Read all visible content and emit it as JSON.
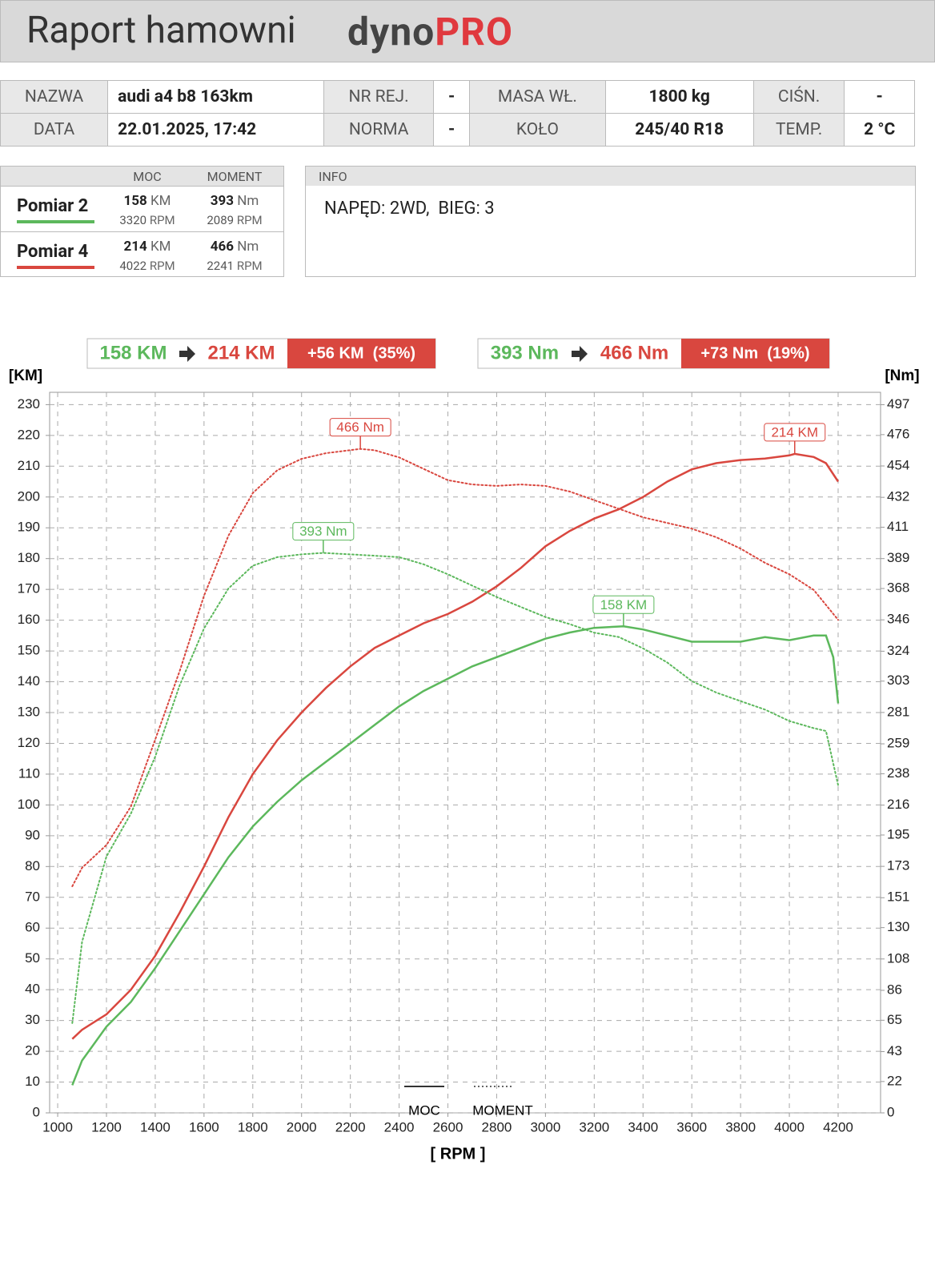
{
  "header": {
    "title": "Raport hamowni",
    "logo": [
      "dyno",
      "PRO"
    ]
  },
  "details": {
    "rows": [
      [
        {
          "label": "NAZWA",
          "value": "audi a4 b8 163km"
        },
        {
          "label": "NR REJ.",
          "value": "-"
        },
        {
          "label": "MASA WŁ.",
          "value": "1800 kg"
        },
        {
          "label": "CIŚN.",
          "value": "-"
        }
      ],
      [
        {
          "label": "DATA",
          "value": "22.01.2025, 17:42"
        },
        {
          "label": "NORMA",
          "value": "-"
        },
        {
          "label": "KOŁO",
          "value": "245/40 R18"
        },
        {
          "label": "TEMP.",
          "value": "2 °C"
        }
      ]
    ]
  },
  "measurements": {
    "headers": [
      "MOC",
      "MOMENT"
    ],
    "rows": [
      {
        "name": "Pomiar 2",
        "color": "#5cb85c",
        "power": [
          "158",
          "KM"
        ],
        "power_rpm": [
          "3320",
          "RPM"
        ],
        "torque": [
          "393",
          "Nm"
        ],
        "torque_rpm": [
          "2089",
          "RPM"
        ]
      },
      {
        "name": "Pomiar 4",
        "color": "#d9473f",
        "power": [
          "214",
          "KM"
        ],
        "power_rpm": [
          "4022",
          "RPM"
        ],
        "torque": [
          "466",
          "Nm"
        ],
        "torque_rpm": [
          "2241",
          "RPM"
        ]
      }
    ]
  },
  "info": {
    "title": "INFO",
    "text": "NAPĘD: 2WD,  BIEG: 3"
  },
  "comparison": [
    {
      "from": "158 KM",
      "to": "214 KM",
      "diff": "+56 KM  (35%)"
    },
    {
      "from": "393 Nm",
      "to": "466 Nm",
      "diff": "+73 Nm  (19%)"
    }
  ],
  "chart_data": {
    "type": "line",
    "x_label": "[ RPM ]",
    "y_label": "[KM]",
    "y2_label": "[Nm]",
    "xlim": [
      967,
      4374
    ],
    "xticks": [
      1000,
      1200,
      1400,
      1600,
      1800,
      2000,
      2200,
      2400,
      2600,
      2800,
      3000,
      3200,
      3400,
      3600,
      3800,
      4000,
      4200
    ],
    "ylim": [
      0,
      234
    ],
    "yticks": [
      0,
      10,
      20,
      30,
      40,
      50,
      60,
      70,
      80,
      90,
      100,
      110,
      120,
      130,
      140,
      150,
      160,
      170,
      180,
      190,
      200,
      210,
      220,
      230
    ],
    "y2lim": [
      0,
      505.7
    ],
    "y2ticks": [
      0,
      22,
      43,
      65,
      86,
      108,
      130,
      151,
      173,
      195,
      216,
      238,
      259,
      281,
      303,
      324,
      346,
      368,
      389,
      411,
      432,
      454,
      476,
      497
    ],
    "grid": true,
    "legend": [
      {
        "label": "MOC",
        "style": "solid"
      },
      {
        "label": "MOMENT",
        "style": "dotted"
      }
    ],
    "series": [
      {
        "color": "#d9473f",
        "style": "solid",
        "x": [
          1060,
          1100,
          1200,
          1300,
          1400,
          1500,
          1600,
          1700,
          1800,
          1900,
          2000,
          2100,
          2200,
          2300,
          2400,
          2500,
          2600,
          2700,
          2800,
          2900,
          3000,
          3100,
          3200,
          3300,
          3400,
          3500,
          3600,
          3700,
          3800,
          3900,
          4000,
          4022,
          4100,
          4150,
          4200
        ],
        "values": [
          24,
          27,
          32,
          40,
          51,
          65,
          80,
          96,
          110,
          121,
          130,
          138,
          145,
          151,
          155,
          159,
          162,
          166,
          171,
          177,
          184,
          189,
          193,
          196,
          200,
          205,
          209,
          211,
          212,
          212.5,
          213.5,
          214,
          213,
          211,
          205
        ]
      },
      {
        "color": "#5cb85c",
        "style": "solid",
        "x": [
          1060,
          1100,
          1200,
          1300,
          1400,
          1500,
          1600,
          1700,
          1800,
          1900,
          2000,
          2100,
          2200,
          2300,
          2400,
          2500,
          2600,
          2700,
          2800,
          2900,
          3000,
          3100,
          3200,
          3320,
          3400,
          3500,
          3600,
          3700,
          3800,
          3900,
          4000,
          4100,
          4150,
          4180,
          4200
        ],
        "values": [
          9,
          17,
          28,
          36,
          47,
          59,
          71,
          83,
          93,
          101,
          108,
          114,
          120,
          126,
          132,
          137,
          141,
          145,
          148,
          151,
          154,
          156,
          157.5,
          158,
          157,
          155,
          153,
          153,
          153,
          154.5,
          153.5,
          155,
          155,
          148,
          133
        ]
      },
      {
        "color": "#d9473f",
        "style": "dotted",
        "axis": "y2",
        "x": [
          1060,
          1100,
          1200,
          1300,
          1400,
          1500,
          1600,
          1700,
          1800,
          1900,
          2000,
          2100,
          2241,
          2300,
          2400,
          2500,
          2600,
          2700,
          2800,
          2900,
          3000,
          3100,
          3200,
          3300,
          3400,
          3500,
          3600,
          3700,
          3800,
          3900,
          4000,
          4100,
          4200
        ],
        "values": [
          159,
          172,
          188,
          215,
          262,
          310,
          363,
          405,
          435,
          451,
          459,
          463,
          466,
          465,
          460,
          452,
          444,
          441,
          440,
          441,
          440,
          436,
          430,
          424,
          418,
          414,
          410,
          404,
          396,
          386,
          378,
          367,
          346
        ]
      },
      {
        "color": "#5cb85c",
        "style": "dotted",
        "axis": "y2",
        "x": [
          1060,
          1100,
          1200,
          1300,
          1400,
          1500,
          1600,
          1700,
          1800,
          1900,
          2000,
          2089,
          2200,
          2300,
          2400,
          2500,
          2600,
          2700,
          2800,
          2900,
          3000,
          3100,
          3200,
          3300,
          3400,
          3500,
          3600,
          3700,
          3800,
          3900,
          4000,
          4100,
          4150,
          4200
        ],
        "values": [
          63,
          120,
          180,
          210,
          250,
          300,
          340,
          368,
          384,
          390,
          392,
          393,
          392,
          391,
          390,
          385,
          378,
          370,
          362,
          355,
          348,
          343,
          337,
          334,
          326,
          316,
          303,
          295,
          289,
          283,
          275,
          270,
          268,
          230
        ]
      }
    ],
    "annotations": [
      {
        "text": "466 Nm",
        "x": 2241,
        "y": 466,
        "axis": "y2",
        "color": "#d9473f"
      },
      {
        "text": "214 KM",
        "x": 4022,
        "y": 214,
        "color": "#d9473f"
      },
      {
        "text": "393 Nm",
        "x": 2089,
        "y": 393,
        "axis": "y2",
        "color": "#5cb85c"
      },
      {
        "text": "158 KM",
        "x": 3320,
        "y": 158,
        "color": "#5cb85c"
      }
    ]
  }
}
